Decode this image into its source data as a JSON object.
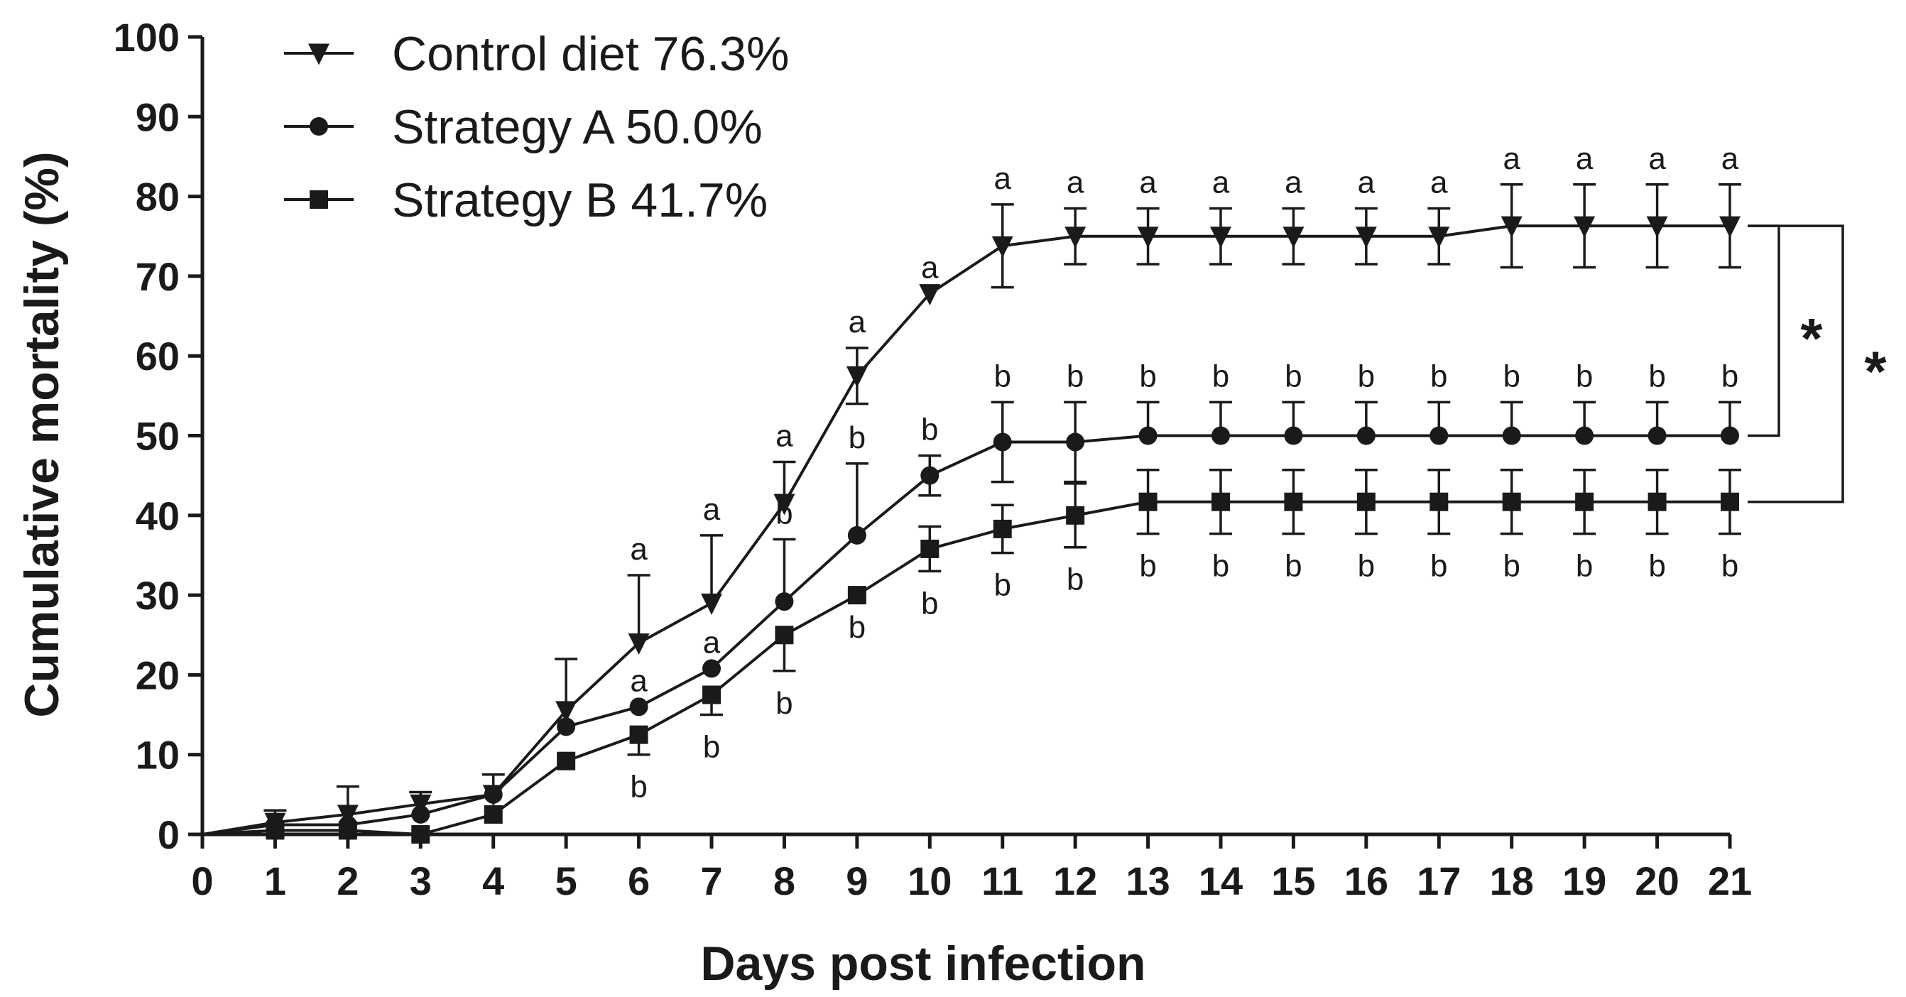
{
  "chart_data": {
    "type": "line",
    "title": "",
    "xlabel": "Days post infection",
    "ylabel": "Cumulative mortality (%)",
    "xlim": [
      0,
      21
    ],
    "ylim": [
      0,
      100
    ],
    "x_ticks": [
      "0",
      "1",
      "2",
      "3",
      "4",
      "5",
      "6",
      "7",
      "8",
      "9",
      "10",
      "11",
      "12",
      "13",
      "14",
      "15",
      "16",
      "17",
      "18",
      "19",
      "20",
      "21"
    ],
    "y_ticks": [
      "0",
      "10",
      "20",
      "30",
      "40",
      "50",
      "60",
      "70",
      "80",
      "90",
      "100"
    ],
    "legend_position": "top-left",
    "series": [
      {
        "name": "Control diet 76.3%",
        "marker": "triangle-down",
        "color": "#1a1a1a",
        "x": [
          0,
          1,
          2,
          3,
          4,
          5,
          6,
          7,
          8,
          9,
          10,
          11,
          12,
          13,
          14,
          15,
          16,
          17,
          18,
          19,
          20,
          21
        ],
        "values": [
          0,
          1.5,
          2.5,
          3.8,
          5,
          15.5,
          24,
          29,
          41.5,
          57.5,
          67.8,
          73.8,
          75,
          75,
          75,
          75,
          75,
          75,
          76.3,
          76.3,
          76.3,
          76.3
        ],
        "err_upper": [
          0,
          1.5,
          3.5,
          1.5,
          2.5,
          6.5,
          8.5,
          8.5,
          5.2,
          3.5,
          0,
          5.2,
          3.5,
          3.5,
          3.5,
          3.5,
          3.5,
          3.5,
          5.2,
          5.2,
          5.2,
          5.2
        ],
        "err_lower": [
          0,
          0,
          0,
          0,
          0,
          0,
          0,
          0,
          0,
          3.5,
          0,
          5.2,
          3.5,
          3.5,
          3.5,
          3.5,
          3.5,
          3.5,
          5.2,
          5.2,
          5.2,
          5.2
        ],
        "letters": [
          {
            "day": 6,
            "text": "a"
          },
          {
            "day": 7,
            "text": "a"
          },
          {
            "day": 8,
            "text": "a"
          },
          {
            "day": 9,
            "text": "a"
          },
          {
            "day": 10,
            "text": "a"
          },
          {
            "day": 11,
            "text": "a"
          },
          {
            "day": 12,
            "text": "a"
          },
          {
            "day": 13,
            "text": "a"
          },
          {
            "day": 14,
            "text": "a"
          },
          {
            "day": 15,
            "text": "a"
          },
          {
            "day": 16,
            "text": "a"
          },
          {
            "day": 17,
            "text": "a"
          },
          {
            "day": 18,
            "text": "a"
          },
          {
            "day": 19,
            "text": "a"
          },
          {
            "day": 20,
            "text": "a"
          },
          {
            "day": 21,
            "text": "a"
          }
        ]
      },
      {
        "name": "Strategy A 50.0%",
        "marker": "circle",
        "color": "#1a1a1a",
        "x": [
          0,
          1,
          2,
          3,
          4,
          5,
          6,
          7,
          8,
          9,
          10,
          11,
          12,
          13,
          14,
          15,
          16,
          17,
          18,
          19,
          20,
          21
        ],
        "values": [
          0,
          1.2,
          1.2,
          2.5,
          5,
          13.5,
          16,
          20.8,
          29.2,
          37.5,
          45,
          49.2,
          49.2,
          50,
          50,
          50,
          50,
          50,
          50,
          50,
          50,
          50
        ],
        "err_upper": [
          0,
          0,
          0,
          0,
          0,
          0,
          0,
          0,
          7.8,
          9,
          2.5,
          5,
          5,
          4.2,
          4.2,
          4.2,
          4.2,
          4.2,
          4.2,
          4.2,
          4.2,
          4.2
        ],
        "err_lower": [
          0,
          0,
          0,
          0,
          0,
          0,
          0,
          0,
          0,
          0,
          2.5,
          5,
          5,
          0,
          0,
          0,
          0,
          0,
          0,
          0,
          0,
          0
        ],
        "letters": [
          {
            "day": 6,
            "text": "a"
          },
          {
            "day": 7,
            "text": "a"
          },
          {
            "day": 8,
            "text": "b"
          },
          {
            "day": 9,
            "text": "b"
          },
          {
            "day": 10,
            "text": "b"
          },
          {
            "day": 11,
            "text": "b"
          },
          {
            "day": 12,
            "text": "b"
          },
          {
            "day": 13,
            "text": "b"
          },
          {
            "day": 14,
            "text": "b"
          },
          {
            "day": 15,
            "text": "b"
          },
          {
            "day": 16,
            "text": "b"
          },
          {
            "day": 17,
            "text": "b"
          },
          {
            "day": 18,
            "text": "b"
          },
          {
            "day": 19,
            "text": "b"
          },
          {
            "day": 20,
            "text": "b"
          },
          {
            "day": 21,
            "text": "b"
          }
        ]
      },
      {
        "name": "Strategy B 41.7%",
        "marker": "square",
        "color": "#1a1a1a",
        "x": [
          0,
          1,
          2,
          3,
          4,
          5,
          6,
          7,
          8,
          9,
          10,
          11,
          12,
          13,
          14,
          15,
          16,
          17,
          18,
          19,
          20,
          21
        ],
        "values": [
          0,
          0.5,
          0.5,
          0,
          2.5,
          9.2,
          12.5,
          17.5,
          25,
          30,
          35.8,
          38.3,
          40,
          41.7,
          41.7,
          41.7,
          41.7,
          41.7,
          41.7,
          41.7,
          41.7,
          41.7
        ],
        "err_upper": [
          0,
          0,
          0,
          0,
          0,
          0,
          0,
          0,
          0,
          0,
          2.8,
          3,
          4,
          4,
          4,
          4,
          4,
          4,
          4,
          4,
          4,
          4
        ],
        "err_lower": [
          0,
          0,
          0,
          0,
          0,
          0,
          2.5,
          2.5,
          4.5,
          0,
          2.8,
          3,
          4,
          4,
          4,
          4,
          4,
          4,
          4,
          4,
          4,
          4
        ],
        "letters": [
          {
            "day": 6,
            "text": "b"
          },
          {
            "day": 7,
            "text": "b"
          },
          {
            "day": 8,
            "text": "b"
          },
          {
            "day": 9,
            "text": "b"
          },
          {
            "day": 10,
            "text": "b"
          },
          {
            "day": 11,
            "text": "b"
          },
          {
            "day": 12,
            "text": "b"
          },
          {
            "day": 13,
            "text": "b"
          },
          {
            "day": 14,
            "text": "b"
          },
          {
            "day": 15,
            "text": "b"
          },
          {
            "day": 16,
            "text": "b"
          },
          {
            "day": 17,
            "text": "b"
          },
          {
            "day": 18,
            "text": "b"
          },
          {
            "day": 19,
            "text": "b"
          },
          {
            "day": 20,
            "text": "b"
          },
          {
            "day": 21,
            "text": "b"
          }
        ]
      }
    ],
    "significance": [
      {
        "between": [
          "Control diet 76.3%",
          "Strategy A 50.0%"
        ],
        "text": "*"
      },
      {
        "between": [
          "Control diet 76.3%",
          "Strategy B 41.7%"
        ],
        "text": "*"
      }
    ]
  }
}
